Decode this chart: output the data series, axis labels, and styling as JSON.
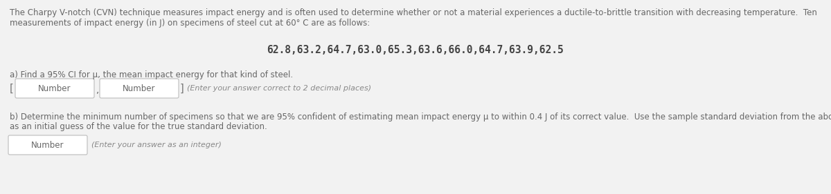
{
  "bg_color": "#f2f2f2",
  "text_color": "#666666",
  "intro_line1": "The Charpy V-notch (CVN) technique measures impact energy and is often used to determine whether or not a material experiences a ductile-to-brittle transition with decreasing temperature.  Ten",
  "intro_line2": "measurements of impact energy (in J) on specimens of steel cut at 60° C are as follows:",
  "data_line": "62.8,63.2,64.7,63.0,65.3,63.6,66.0,64.7,63.9,62.5",
  "part_a_label": "a) Find a 95% CI for μ, the mean impact energy for that kind of steel.",
  "part_a_instruction": "(Enter your answer correct to 2 decimal places)",
  "part_b_line1": "b) Determine the minimum number of specimens so that we are 95% confident of estimating mean impact energy μ to within 0.4 J of its correct value.  Use the sample standard deviation from the above data",
  "part_b_line2": "as an initial guess of the value for the true standard deviation.",
  "part_b_instruction": "(Enter your answer as an integer)",
  "box_label": "Number",
  "box_facecolor": "#ffffff",
  "box_edgecolor": "#bbbbbb",
  "bracket_color": "#777777",
  "instruction_color": "#888888"
}
